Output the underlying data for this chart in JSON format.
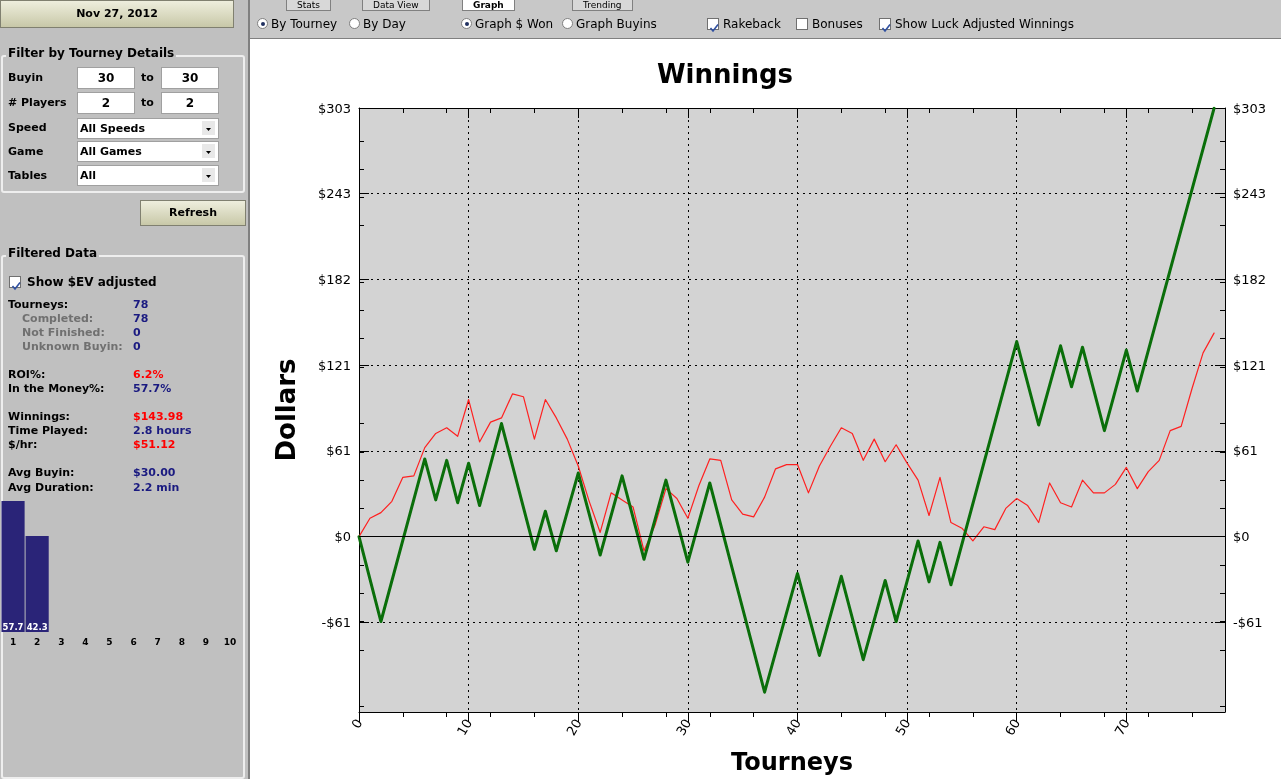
{
  "chart_data": [
    {
      "type": "line",
      "title": "Winnings",
      "xlabel": "Tourneys",
      "ylabel": "Dollars",
      "xlim": [
        0,
        79
      ],
      "xticks": [
        0,
        10,
        20,
        30,
        40,
        50,
        60,
        70
      ],
      "ylim": [
        -124,
        303.2
      ],
      "yticks": [
        {
          "value": -60.64,
          "label": "-$61"
        },
        {
          "value": 0,
          "label": "$0"
        },
        {
          "value": 60.64,
          "label": "$61"
        },
        {
          "value": 121.28,
          "label": "$121"
        },
        {
          "value": 181.92,
          "label": "$182"
        },
        {
          "value": 242.56,
          "label": "$243"
        },
        {
          "value": 303.2,
          "label": "$303"
        }
      ],
      "y2lim": [
        -124,
        303.2
      ],
      "y2ticks": [
        {
          "value": -60.64,
          "label": "-$61"
        },
        {
          "value": 0,
          "label": "$0"
        },
        {
          "value": 60.64,
          "label": "$61"
        },
        {
          "value": 121.28,
          "label": "$121"
        },
        {
          "value": 181.92,
          "label": "$182"
        },
        {
          "value": 242.56,
          "label": "$243"
        },
        {
          "value": 303.2,
          "label": "$303"
        }
      ],
      "grid": true,
      "marker": "none",
      "line_style": "solid",
      "ref_lines": [
        {
          "axis": "y",
          "value": 0,
          "color": "#000000",
          "line_style": "solid"
        }
      ],
      "series": [
        {
          "color": "#ff2020",
          "x": [
            0,
            1,
            2,
            3,
            4,
            5,
            6,
            7,
            8,
            9,
            10,
            11,
            12,
            13,
            14,
            15,
            16,
            17,
            18,
            19,
            20,
            21,
            22,
            23,
            24,
            25,
            26,
            27,
            28,
            29,
            30,
            31,
            32,
            33,
            34,
            35,
            36,
            37,
            38,
            39,
            40,
            41,
            42,
            43,
            44,
            45,
            46,
            47,
            48,
            49,
            50,
            51,
            52,
            53,
            54,
            55,
            56,
            57,
            58,
            59,
            60,
            61,
            62,
            63,
            64,
            65,
            66,
            67,
            68,
            69,
            70,
            71,
            72,
            73,
            74,
            75,
            76,
            77,
            78
          ],
          "values": [
            0,
            13,
            17,
            25,
            42,
            43,
            63,
            73,
            77,
            71,
            97,
            67,
            81,
            84,
            101,
            99,
            69,
            97,
            84,
            69,
            50,
            25,
            3,
            31,
            26,
            21,
            -10,
            8,
            34,
            27,
            13,
            36,
            55,
            54,
            26,
            16,
            14,
            28,
            48,
            51,
            51,
            31,
            50,
            64,
            77,
            73,
            54,
            69,
            53,
            65,
            52,
            40,
            15,
            42,
            10,
            6,
            -3,
            7,
            5,
            20,
            27,
            22,
            10,
            38,
            24,
            21,
            40,
            31,
            31,
            37,
            49,
            34,
            46,
            54,
            75,
            78,
            105,
            130,
            144
          ]
        },
        {
          "color": "#0a6e0a",
          "x": [
            0,
            2,
            6,
            7,
            8,
            9,
            10,
            11,
            13,
            16,
            17,
            18,
            20,
            22,
            24,
            26,
            28,
            30,
            32,
            37,
            40,
            42,
            44,
            46,
            48,
            49,
            51,
            52,
            53,
            54,
            60,
            62,
            64,
            65,
            66,
            68,
            70,
            71,
            78
          ],
          "values": [
            0,
            -60,
            55,
            26,
            54,
            24,
            52,
            22,
            80,
            -9,
            18,
            -10,
            45,
            -13,
            43,
            -16,
            40,
            -18,
            38,
            -110,
            -26,
            -84,
            -28,
            -87,
            -31,
            -60,
            -3,
            -32,
            -4,
            -34,
            138,
            79,
            135,
            106,
            134,
            75,
            132,
            103,
            303
          ]
        }
      ]
    },
    {
      "type": "bar",
      "categories": [
        "1",
        "2",
        "3",
        "4",
        "5",
        "6",
        "7",
        "8",
        "9",
        "10"
      ],
      "values": [
        57.7,
        42.3,
        null,
        null,
        null,
        null,
        null,
        null,
        null,
        null
      ],
      "color": "#2a2478",
      "data_labels": true
    },
    {
      "type": "other",
      "annotations": [
        "Nov 27, 2012",
        "Filter by Tourney Details",
        "Buyin",
        "30",
        "to",
        "30",
        "# Players",
        "2",
        "to",
        "2",
        "Speed",
        "All Speeds",
        "Game",
        "All Games",
        "Tables",
        "All",
        "Refresh",
        "Filtered Data",
        "Show $EV adjusted",
        "Tourneys:",
        "78",
        "Completed:",
        "78",
        "Not Finished:",
        "0",
        "Unknown Buyin:",
        "0",
        "ROI%:",
        "6.2%",
        "In the Money%:",
        "57.7%",
        "Winnings:",
        "$143.98",
        "Time Played:",
        "2.8 hours",
        "$/hr:",
        "$51.12",
        "Avg Buyin:",
        "$30.00",
        "Avg Duration:",
        "2.2 min"
      ]
    },
    {
      "type": "other",
      "annotations": [
        "Stats",
        "Data View",
        "Graph",
        "Trending",
        "By Tourney",
        "By Day",
        "Graph $ Won",
        "Graph Buyins",
        "Rakeback",
        "Bonuses",
        "Show Luck Adjusted Winnings"
      ]
    }
  ]
}
